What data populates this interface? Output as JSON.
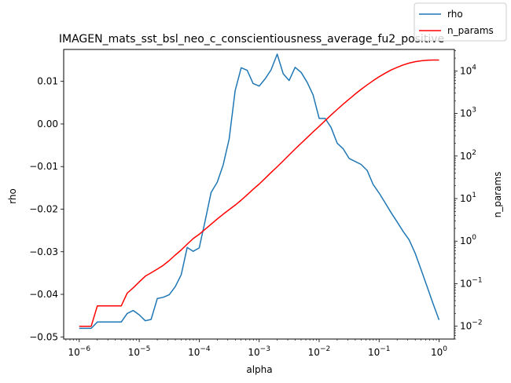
{
  "chart_data": {
    "type": "line",
    "title": "IMAGEN_mats_sst_bsl_neo_c_conscientiousness_average_fu2_positive",
    "xlabel": "alpha",
    "ylabel": "rho",
    "y2label": "n_params",
    "xscale": "log",
    "xlim": [
      5.5e-07,
      1.8
    ],
    "ylim": [
      -0.0505,
      0.0175
    ],
    "y2scale": "log",
    "y2lim": [
      0.005,
      32000
    ],
    "x_ticks": [
      {
        "label": "10",
        "exp": "−6",
        "value": 1e-06
      },
      {
        "label": "10",
        "exp": "−5",
        "value": 1e-05
      },
      {
        "label": "10",
        "exp": "−4",
        "value": 0.0001
      },
      {
        "label": "10",
        "exp": "−3",
        "value": 0.001
      },
      {
        "label": "10",
        "exp": "−2",
        "value": 0.01
      },
      {
        "label": "10",
        "exp": "−1",
        "value": 0.1
      },
      {
        "label": "10",
        "exp": "0",
        "value": 1
      }
    ],
    "y_ticks": [
      {
        "label": "0.01",
        "value": 0.01
      },
      {
        "label": "0.00",
        "value": 0.0
      },
      {
        "label": "−0.01",
        "value": -0.01
      },
      {
        "label": "−0.02",
        "value": -0.02
      },
      {
        "label": "−0.03",
        "value": -0.03
      },
      {
        "label": "−0.04",
        "value": -0.04
      },
      {
        "label": "−0.05",
        "value": -0.05
      }
    ],
    "y2_ticks": [
      {
        "label": "10",
        "exp": "−2",
        "value": 0.01
      },
      {
        "label": "10",
        "exp": "−1",
        "value": 0.1
      },
      {
        "label": "10",
        "exp": "0",
        "value": 1
      },
      {
        "label": "10",
        "exp": "1",
        "value": 10
      },
      {
        "label": "10",
        "exp": "2",
        "value": 100
      },
      {
        "label": "10",
        "exp": "3",
        "value": 1000
      },
      {
        "label": "10",
        "exp": "4",
        "value": 10000
      }
    ],
    "legend": {
      "position": "top-right"
    },
    "series": [
      {
        "name": "rho",
        "axis": "left",
        "color": "#1f77b4",
        "x": [
          1e-06,
          1.26e-06,
          1.58e-06,
          2e-06,
          2.51e-06,
          3.16e-06,
          3.98e-06,
          5.01e-06,
          6.31e-06,
          7.94e-06,
          1e-05,
          1.26e-05,
          1.58e-05,
          2e-05,
          2.51e-05,
          3.16e-05,
          3.98e-05,
          5.01e-05,
          6.31e-05,
          7.94e-05,
          0.0001,
          0.000126,
          0.000158,
          0.0002,
          0.000251,
          0.000316,
          0.000398,
          0.000501,
          0.000631,
          0.000794,
          0.001,
          0.00126,
          0.00158,
          0.002,
          0.00251,
          0.00316,
          0.00398,
          0.00501,
          0.00631,
          0.00794,
          0.01,
          0.0126,
          0.0158,
          0.02,
          0.0251,
          0.0316,
          0.0398,
          0.0501,
          0.0631,
          0.0794,
          0.1,
          0.126,
          0.158,
          0.2,
          0.251,
          0.316,
          0.398,
          0.501,
          0.631,
          0.794,
          1.0
        ],
        "y": [
          -0.048,
          -0.048,
          -0.048,
          -0.0465,
          -0.0465,
          -0.0465,
          -0.0465,
          -0.0465,
          -0.0445,
          -0.0438,
          -0.0448,
          -0.0462,
          -0.0459,
          -0.041,
          -0.0407,
          -0.0401,
          -0.0382,
          -0.0354,
          -0.029,
          -0.0299,
          -0.0291,
          -0.0227,
          -0.0161,
          -0.0137,
          -0.0096,
          -0.0035,
          0.0078,
          0.0132,
          0.0126,
          0.0095,
          0.0089,
          0.0106,
          0.0127,
          0.0164,
          0.0118,
          0.0102,
          0.0133,
          0.0121,
          0.0098,
          0.0068,
          0.0013,
          0.0013,
          -0.0008,
          -0.0045,
          -0.0058,
          -0.0081,
          -0.0088,
          -0.0095,
          -0.0109,
          -0.0142,
          -0.0162,
          -0.0185,
          -0.0208,
          -0.023,
          -0.0252,
          -0.0272,
          -0.0303,
          -0.0342,
          -0.0382,
          -0.0422,
          -0.046
        ]
      },
      {
        "name": "n_params",
        "axis": "right",
        "color": "#ff0000",
        "x": [
          1e-06,
          1.26e-06,
          1.58e-06,
          2e-06,
          2.51e-06,
          3.16e-06,
          3.98e-06,
          5.01e-06,
          6.31e-06,
          7.94e-06,
          1e-05,
          1.26e-05,
          1.58e-05,
          2e-05,
          2.51e-05,
          3.16e-05,
          3.98e-05,
          5.01e-05,
          6.31e-05,
          7.94e-05,
          0.0001,
          0.000126,
          0.000158,
          0.0002,
          0.000251,
          0.000316,
          0.000398,
          0.000501,
          0.000631,
          0.000794,
          0.001,
          0.00126,
          0.00158,
          0.002,
          0.00251,
          0.00316,
          0.00398,
          0.00501,
          0.00631,
          0.00794,
          0.01,
          0.0126,
          0.0158,
          0.02,
          0.0251,
          0.0316,
          0.0398,
          0.0501,
          0.0631,
          0.0794,
          0.1,
          0.126,
          0.158,
          0.2,
          0.251,
          0.316,
          0.398,
          0.501,
          0.631,
          0.794,
          1.0
        ],
        "y": [
          0.01,
          0.01,
          0.01,
          0.03,
          0.03,
          0.03,
          0.03,
          0.03,
          0.06,
          0.08,
          0.11,
          0.15,
          0.18,
          0.22,
          0.27,
          0.35,
          0.47,
          0.62,
          0.85,
          1.15,
          1.45,
          1.9,
          2.5,
          3.3,
          4.3,
          5.5,
          7.0,
          9.2,
          12.3,
          16.5,
          22.0,
          30.0,
          41.0,
          56.0,
          77.0,
          106.0,
          146.0,
          200.0,
          272.0,
          370.0,
          500.0,
          680.0,
          920.0,
          1240.0,
          1650.0,
          2180.0,
          2850.0,
          3680.0,
          4700.0,
          5900.0,
          7300.0,
          8850.0,
          10500.0,
          12150.0,
          13800.0,
          15300.0,
          16500.0,
          17300.0,
          17800.0,
          18000.0,
          18000.0
        ]
      }
    ]
  }
}
